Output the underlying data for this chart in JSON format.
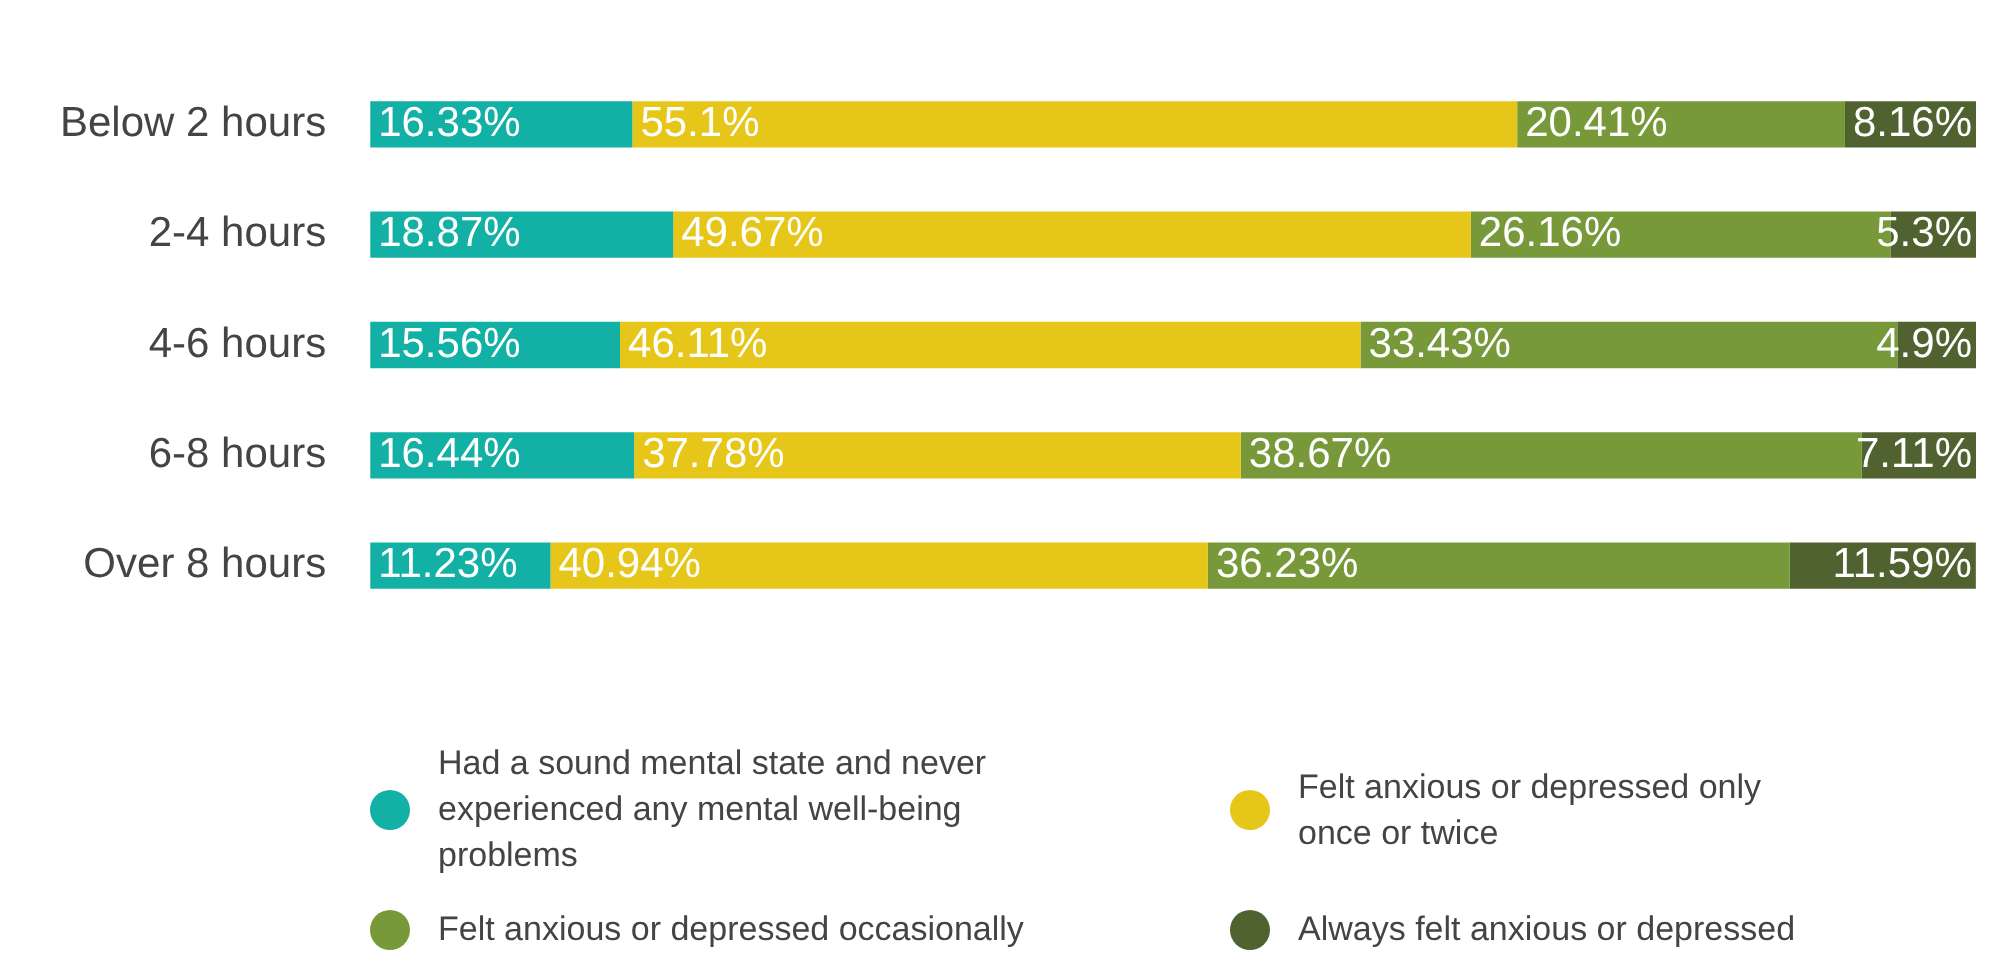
{
  "chart_data": {
    "type": "bar",
    "orientation": "horizontal",
    "stacked": true,
    "categories": [
      "Below 2 hours",
      "2-4 hours",
      "4-6 hours",
      "6-8 hours",
      "Over 8 hours"
    ],
    "xlim": [
      0,
      100
    ],
    "tick_labels": "y",
    "legend": "bottom",
    "series": [
      {
        "name": "Had a sound mental state and never experienced any mental well-being problems",
        "color": "#13b0a5",
        "values": [
          16.33,
          18.87,
          15.56,
          16.44,
          11.23
        ],
        "value_labels": [
          "16.33%",
          "18.87%",
          "15.56%",
          "16.44%",
          "11.23%"
        ]
      },
      {
        "name": "Felt anxious or depressed only once or twice",
        "color": "#e6c619",
        "values": [
          55.1,
          49.67,
          46.11,
          37.78,
          40.94
        ],
        "value_labels": [
          "55.1%",
          "49.67%",
          "46.11%",
          "37.78%",
          "40.94%"
        ]
      },
      {
        "name": "Felt anxious or depressed occasionally",
        "color": "#77993a",
        "values": [
          20.41,
          26.16,
          33.43,
          38.67,
          36.23
        ],
        "value_labels": [
          "20.41%",
          "26.16%",
          "33.43%",
          "38.67%",
          "36.23%"
        ]
      },
      {
        "name": "Always felt anxious or depressed",
        "color": "#4f6230",
        "values": [
          8.16,
          5.3,
          4.9,
          7.11,
          11.59
        ],
        "value_labels": [
          "8.16%",
          "5.3%",
          "4.9%",
          "7.11%",
          "11.59%"
        ]
      }
    ]
  }
}
